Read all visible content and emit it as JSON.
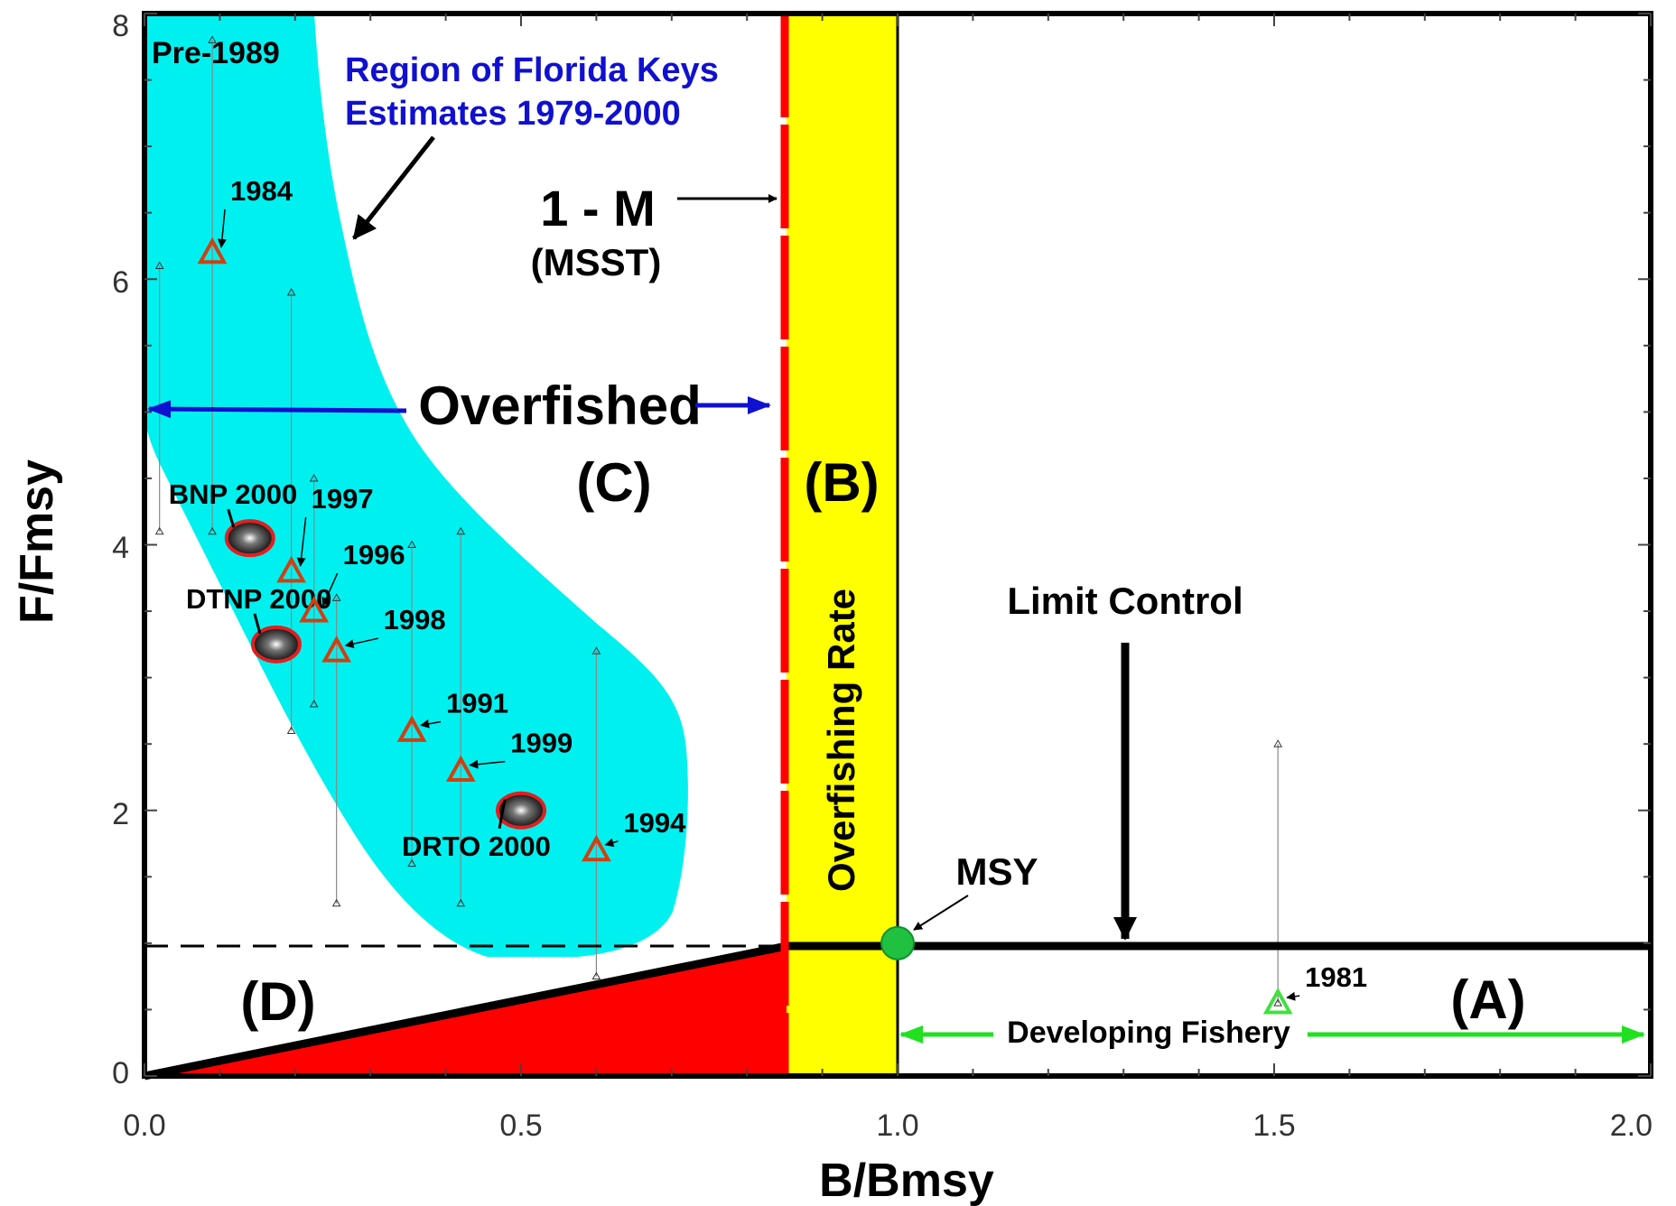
{
  "chart_data": {
    "type": "scatter",
    "title": "",
    "xlabel": "B/Bmsy",
    "ylabel": "F/Fmsy",
    "xlim": [
      0.0,
      2.0
    ],
    "ylim": [
      0,
      8
    ],
    "xticks": [
      "0.0",
      "0.5",
      "1.0",
      "1.5",
      "2.0"
    ],
    "yticks": [
      "0",
      "2",
      "4",
      "6",
      "8"
    ],
    "grid": false,
    "colors": {
      "shaded_region": "#00f0f0",
      "overfishing_band": "#ffff00",
      "red_wedge": "#ff0000",
      "mssT_line": "#ff0000",
      "point_orange": "#d04010",
      "point_green": "#40e040",
      "msy_dot": "#20c040",
      "blue_note": "#1010d0"
    },
    "estimates": [
      {
        "label": "1984",
        "x": 0.09,
        "y": 6.2
      },
      {
        "label": "1997",
        "x": 0.195,
        "y": 3.8
      },
      {
        "label": "1996",
        "x": 0.225,
        "y": 3.5
      },
      {
        "label": "1998",
        "x": 0.255,
        "y": 3.2
      },
      {
        "label": "1991",
        "x": 0.355,
        "y": 2.6
      },
      {
        "label": "1999",
        "x": 0.42,
        "y": 2.3
      },
      {
        "label": "1994",
        "x": 0.6,
        "y": 1.7
      },
      {
        "label": "1981",
        "x": 1.505,
        "y": 0.55
      }
    ],
    "park_estimates": [
      {
        "label": "BNP 2000",
        "x": 0.14,
        "y": 4.05
      },
      {
        "label": "DTNP 2000",
        "x": 0.175,
        "y": 3.25
      },
      {
        "label": "DRTO 2000",
        "x": 0.5,
        "y": 2.0
      }
    ],
    "uncertainty_lines": [
      {
        "x": 0.02,
        "y": [
          4.1,
          6.1
        ]
      },
      {
        "x": 0.09,
        "y": [
          4.1,
          7.8
        ]
      },
      {
        "x": 0.195,
        "y": [
          2.6,
          5.9
        ]
      },
      {
        "x": 0.225,
        "y": [
          2.8,
          4.5
        ]
      },
      {
        "x": 0.255,
        "y": [
          1.3,
          3.6
        ]
      },
      {
        "x": 0.355,
        "y": [
          1.6,
          4.0
        ]
      },
      {
        "x": 0.42,
        "y": [
          1.3,
          4.1
        ]
      },
      {
        "x": 0.6,
        "y": [
          0.75,
          3.2
        ]
      },
      {
        "x": 1.505,
        "y": [
          0.55,
          2.5
        ]
      }
    ],
    "reference_points": {
      "msst_x": 0.86,
      "msy": {
        "x": 1.0,
        "y": 1.0
      },
      "limit_control_y": 1.0
    }
  },
  "annotations": {
    "pre1989": "Pre-1989",
    "region_note_line1": "Region of Florida Keys",
    "region_note_line2": "Estimates 1979-2000",
    "one_minus_m": "1 - M",
    "msst": "(MSST)",
    "overfished": "Overfished",
    "region_c": "(C)",
    "region_b": "(B)",
    "region_a": "(A)",
    "region_d": "(D)",
    "overfishing_rate": "Overfishing Rate",
    "limit_control": "Limit Control",
    "msy": "MSY",
    "developing_fishery": "Developing Fishery"
  }
}
